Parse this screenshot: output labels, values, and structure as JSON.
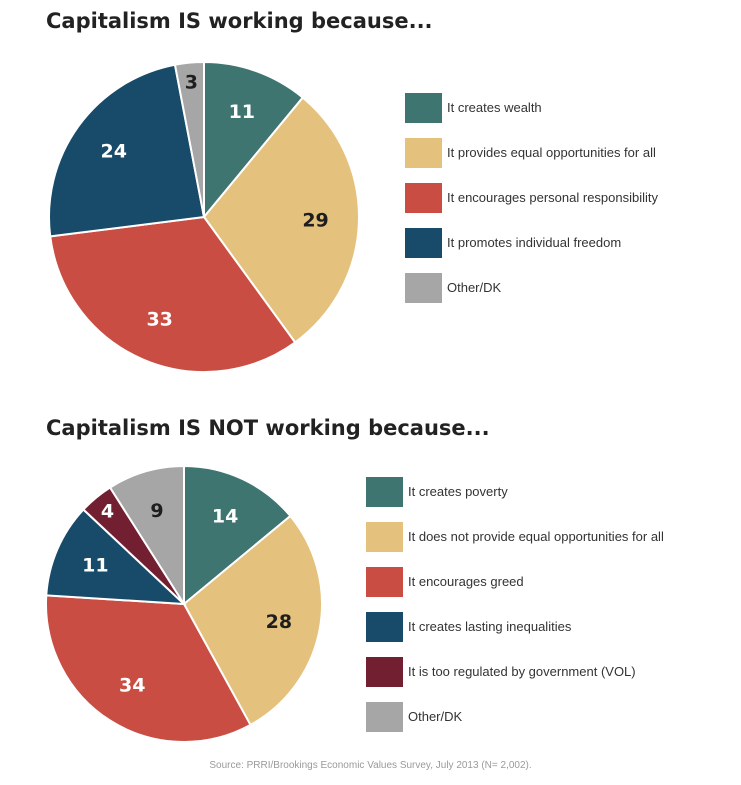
{
  "colors": {
    "teal": "#3F7570",
    "tan": "#E5C17E",
    "red": "#C94D42",
    "navy": "#174B69",
    "maroon": "#731F32",
    "gray": "#A6A6A6"
  },
  "chart_data": [
    {
      "type": "pie",
      "title": "Capitalism IS working because...",
      "categories": [
        "It creates wealth",
        "It provides equal opportunities for all",
        "It encourages personal responsibility",
        "It promotes individual freedom",
        "Other/DK"
      ],
      "values": [
        11,
        29,
        33,
        24,
        3
      ],
      "slice_labels": [
        "11",
        "29",
        "33",
        "24",
        "3"
      ],
      "colors": [
        "#3F7570",
        "#E5C17E",
        "#C94D42",
        "#174B69",
        "#A6A6A6"
      ],
      "label_colors": [
        "#ffffff",
        "#1e1e1e",
        "#ffffff",
        "#ffffff",
        "#1e1e1e"
      ],
      "legend_position": "right"
    },
    {
      "type": "pie",
      "title": "Capitalism IS NOT working because...",
      "categories": [
        "It creates poverty",
        "It does not provide equal opportunities for all",
        "It encourages greed",
        "It creates lasting inequalities",
        "It is too regulated by government (VOL)",
        "Other/DK"
      ],
      "values": [
        14,
        28,
        34,
        11,
        4,
        9
      ],
      "slice_labels": [
        "14",
        "28",
        "34",
        "11",
        "4",
        "9"
      ],
      "colors": [
        "#3F7570",
        "#E5C17E",
        "#C94D42",
        "#174B69",
        "#731F32",
        "#A6A6A6"
      ],
      "label_colors": [
        "#ffffff",
        "#1e1e1e",
        "#ffffff",
        "#ffffff",
        "#ffffff",
        "#1e1e1e"
      ],
      "legend_position": "right"
    }
  ],
  "source": "Source: PRRI/Brookings Economic Values Survey, July 2013 (N= 2,002)."
}
